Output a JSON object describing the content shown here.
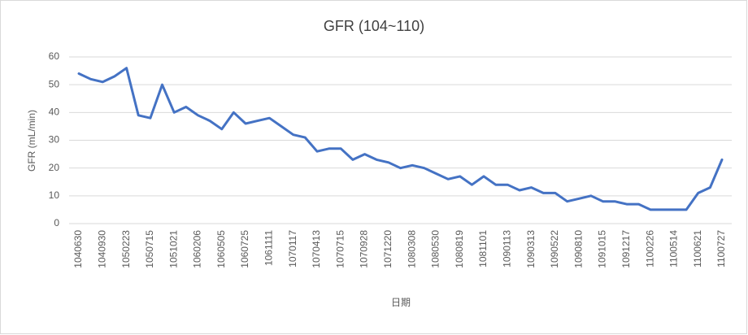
{
  "chart_data": {
    "type": "line",
    "title": "GFR (104~110)",
    "x_label": "日期",
    "y_label": "GFR (mL/min)",
    "categories": [
      "1040630",
      null,
      "1040930",
      null,
      "1050223",
      null,
      "1050715",
      null,
      "1051021",
      null,
      "1060206",
      null,
      "1060505",
      null,
      "1060725",
      null,
      "1061111",
      null,
      "1070117",
      null,
      "1070413",
      null,
      "1070715",
      null,
      "1070928",
      null,
      "1071220",
      null,
      "1080308",
      null,
      "1080530",
      null,
      "1080819",
      null,
      "1081101",
      null,
      "1090113",
      null,
      "1090313",
      null,
      "1090522",
      null,
      "1090810",
      null,
      "1091015",
      null,
      "1091217",
      null,
      "1100226",
      null,
      "1100514",
      null,
      "1100621",
      null,
      "1100727"
    ],
    "values": [
      54,
      52,
      51,
      53,
      56,
      39,
      38,
      50,
      40,
      42,
      39,
      37,
      34,
      40,
      36,
      37,
      38,
      35,
      32,
      31,
      26,
      27,
      27,
      23,
      25,
      23,
      22,
      20,
      21,
      20,
      18,
      16,
      17,
      14,
      17,
      14,
      14,
      12,
      13,
      11,
      11,
      8,
      9,
      10,
      8,
      8,
      7,
      7,
      5,
      5,
      5,
      5,
      11,
      13,
      23
    ],
    "color": "#4472c4",
    "ylim": [
      0,
      60
    ],
    "yticks": [
      0,
      10,
      20,
      30,
      40,
      50,
      60
    ],
    "grid": true
  }
}
